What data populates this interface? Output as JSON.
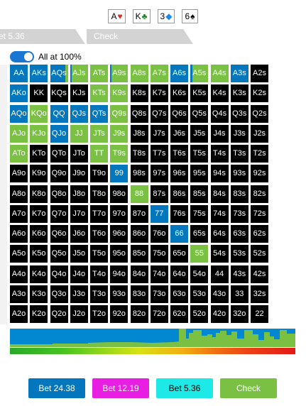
{
  "board": {
    "cards": [
      {
        "rank": "A",
        "suit": "♥",
        "suit_color": "#d32f2f"
      },
      {
        "rank": "K",
        "suit": "♣",
        "suit_color": "#2e7d32"
      },
      {
        "rank": "3",
        "suit": "◆",
        "suit_color": "#1e88e5"
      },
      {
        "rank": "6",
        "suit": "♠",
        "suit_color": "#000000"
      }
    ]
  },
  "tabs": [
    {
      "label": "et 5.36"
    },
    {
      "label": "Check"
    }
  ],
  "toggle": {
    "label": "All at 100%",
    "on": true
  },
  "colors": {
    "bet_large": "#0277bd",
    "check": "#7ac143",
    "cell_bg": "#000000"
  },
  "grid": {
    "rows": [
      [
        "AA",
        "AKs",
        "AQs",
        "AJs",
        "ATs",
        "A9s",
        "A8s",
        "A7s",
        "A6s",
        "A5s",
        "A4s",
        "A3s",
        "A2s"
      ],
      [
        "AKo",
        "KK",
        "KQs",
        "KJs",
        "KTs",
        "K9s",
        "K8s",
        "K7s",
        "K6s",
        "K5s",
        "K4s",
        "K3s",
        "K2s"
      ],
      [
        "AQo",
        "KQo",
        "QQ",
        "QJs",
        "QTs",
        "Q9s",
        "Q8s",
        "Q7s",
        "Q6s",
        "Q5s",
        "Q4s",
        "Q3s",
        "Q2s"
      ],
      [
        "AJo",
        "KJo",
        "QJo",
        "JJ",
        "JTs",
        "J9s",
        "J8s",
        "J7s",
        "J6s",
        "J5s",
        "J4s",
        "J3s",
        "J2s"
      ],
      [
        "ATo",
        "KTo",
        "QTo",
        "JTo",
        "TT",
        "T9s",
        "T8s",
        "T7s",
        "T6s",
        "T5s",
        "T4s",
        "T3s",
        "T2s"
      ],
      [
        "A9o",
        "K9o",
        "Q9o",
        "J9o",
        "T9o",
        "99",
        "98s",
        "97s",
        "96s",
        "95s",
        "94s",
        "93s",
        "92s"
      ],
      [
        "A8o",
        "K8o",
        "Q8o",
        "J8o",
        "T8o",
        "98o",
        "88",
        "87s",
        "86s",
        "85s",
        "84s",
        "83s",
        "82s"
      ],
      [
        "A7o",
        "K7o",
        "Q7o",
        "J7o",
        "T7o",
        "97o",
        "87o",
        "77",
        "76s",
        "75s",
        "74s",
        "73s",
        "72s"
      ],
      [
        "A6o",
        "K6o",
        "Q6o",
        "J6o",
        "T6o",
        "96o",
        "86o",
        "76o",
        "66",
        "65s",
        "64s",
        "63s",
        "62s"
      ],
      [
        "A5o",
        "K5o",
        "Q5o",
        "J5o",
        "T5o",
        "95o",
        "85o",
        "75o",
        "65o",
        "55",
        "54s",
        "53s",
        "52s"
      ],
      [
        "A4o",
        "K4o",
        "Q4o",
        "J4o",
        "T4o",
        "94o",
        "84o",
        "74o",
        "64o",
        "54o",
        "44",
        "43s",
        "42s"
      ],
      [
        "A3o",
        "K3o",
        "Q3o",
        "J3o",
        "T3o",
        "93o",
        "83o",
        "73o",
        "63o",
        "53o",
        "43o",
        "33",
        "32s"
      ],
      [
        "A2o",
        "K2o",
        "Q2o",
        "J2o",
        "T2o",
        "92o",
        "82o",
        "72o",
        "62o",
        "52o",
        "42o",
        "32o",
        "22"
      ]
    ],
    "strategy": {
      "AA": [
        1,
        0
      ],
      "AKs": [
        1,
        0
      ],
      "AQs": [
        0.85,
        0.15
      ],
      "AJs": [
        0.1,
        0.9
      ],
      "ATs": [
        0,
        1
      ],
      "A9s": [
        0.05,
        0.95
      ],
      "A8s": [
        0,
        1
      ],
      "A7s": [
        0,
        1
      ],
      "A6s": [
        1,
        0
      ],
      "A5s": [
        0.1,
        0.9
      ],
      "A4s": [
        0,
        1
      ],
      "A3s": [
        1,
        0
      ],
      "AKo": [
        1,
        0
      ],
      "KTs": [
        0,
        1
      ],
      "K9s": [
        0,
        1
      ],
      "AQo": [
        1,
        0
      ],
      "KQo": [
        0,
        1
      ],
      "QQ": [
        1,
        0
      ],
      "QJs": [
        1,
        0
      ],
      "QTs": [
        1,
        0
      ],
      "Q9s": [
        0,
        1
      ],
      "AJo": [
        0,
        1
      ],
      "KJo": [
        0,
        1
      ],
      "QJo": [
        1,
        0
      ],
      "JJ": [
        0,
        1
      ],
      "JTs": [
        0,
        1
      ],
      "J9s": [
        0,
        1
      ],
      "ATo": [
        0,
        1
      ],
      "TT": [
        0,
        1
      ],
      "T9s": [
        0,
        1
      ],
      "99": [
        1,
        0
      ],
      "88": [
        0,
        1
      ],
      "77": [
        1,
        0
      ],
      "66": [
        1,
        0
      ],
      "55": [
        0,
        1
      ]
    }
  },
  "actions": [
    {
      "label": "Bet 24.38",
      "bg": "#0277bd",
      "fg": "#ffffff"
    },
    {
      "label": "Bet 12.19",
      "bg": "#e91ee3",
      "fg": "#ffffff"
    },
    {
      "label": "Bet 5.36",
      "bg": "#1de9e6",
      "fg": "#000000"
    },
    {
      "label": "Check",
      "bg": "#7ac143",
      "fg": "#ffffff"
    }
  ]
}
